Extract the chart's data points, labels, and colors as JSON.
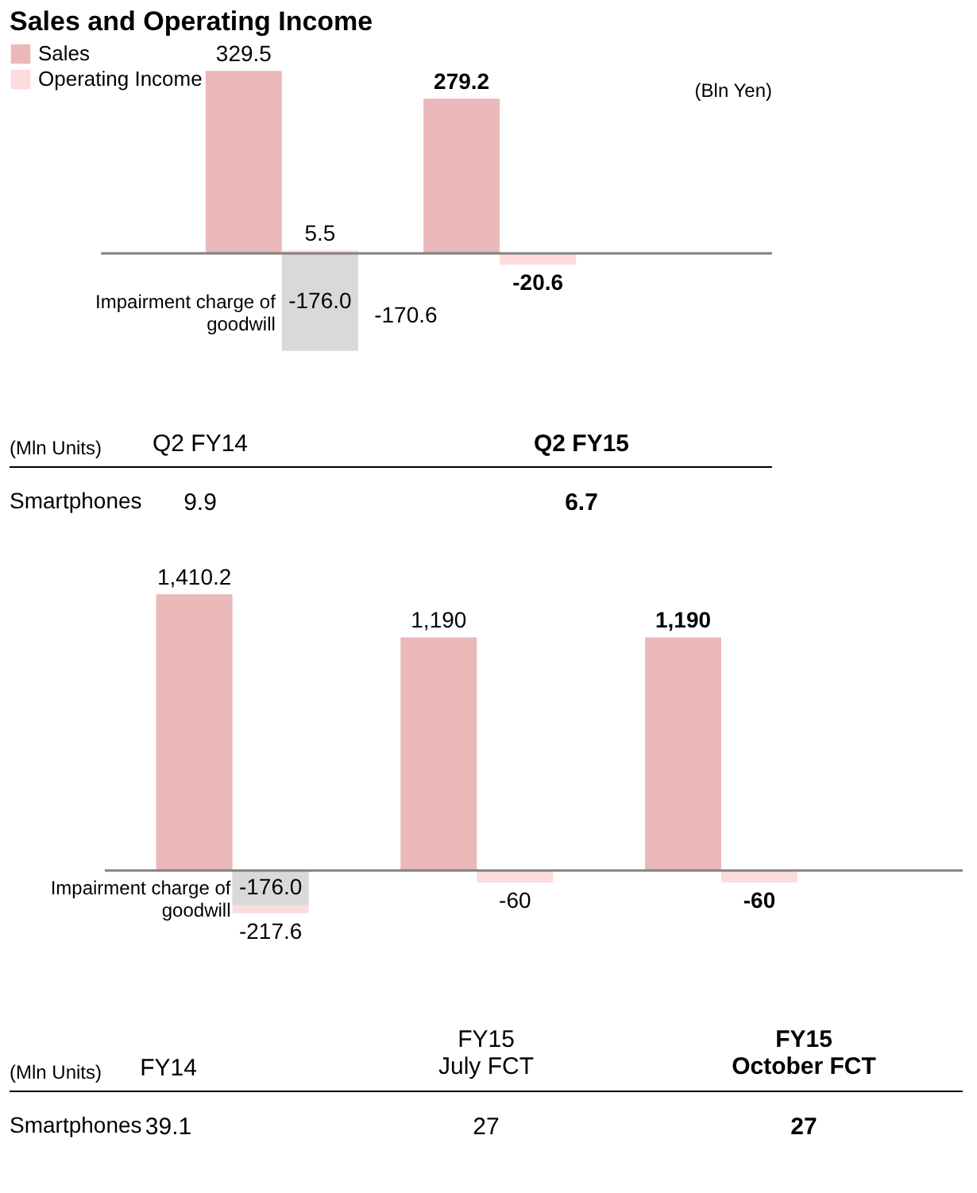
{
  "chart_data": [
    {
      "type": "bar",
      "title": "Sales and Operating Income",
      "ylabel": "(Bln Yen)",
      "categories": [
        "Q2 FY14",
        "Q2 FY15"
      ],
      "legend": "top left",
      "series": [
        {
          "name": "Sales",
          "color": "#ebb8b9",
          "values": [
            329.5,
            279.2
          ],
          "value_labels": [
            "329.5",
            "279.2"
          ]
        },
        {
          "name": "Operating Income",
          "color": "#fddcdc",
          "values": [
            5.5,
            -20.6
          ],
          "value_labels": [
            "5.5",
            "-20.6"
          ]
        },
        {
          "name": "Impairment charge of goodwill",
          "color": "#d9d9d9",
          "values": [
            -176.0,
            null
          ],
          "value_labels": [
            "-176.0",
            null
          ]
        }
      ],
      "annotations": [
        "(Mln Units)",
        "Smartphones",
        "9.9",
        "6.7",
        "-170.6"
      ]
    },
    {
      "type": "bar",
      "categories": [
        "FY14",
        "FY15\nJuly FCT",
        "FY15\nOctober FCT"
      ],
      "series": [
        {
          "color": "#ebb8b9",
          "values": [
            1410.2,
            1190,
            1190
          ],
          "value_labels": [
            "1,410.2",
            "1,190",
            "1,190"
          ]
        },
        {
          "color": "#fddcdc",
          "values": [
            -217.6,
            -60,
            -60
          ],
          "value_labels": [
            "-217.6",
            "-60",
            "-60"
          ]
        },
        {
          "name": "Impairment charge of goodwill",
          "color": "#d9d9d9",
          "values": [
            -176.0,
            null,
            null
          ],
          "value_labels": [
            "-176.0",
            null,
            null
          ]
        }
      ],
      "annotations": [
        "(Mln Units)",
        "Smartphones",
        "39.1",
        "27",
        "27"
      ]
    }
  ]
}
